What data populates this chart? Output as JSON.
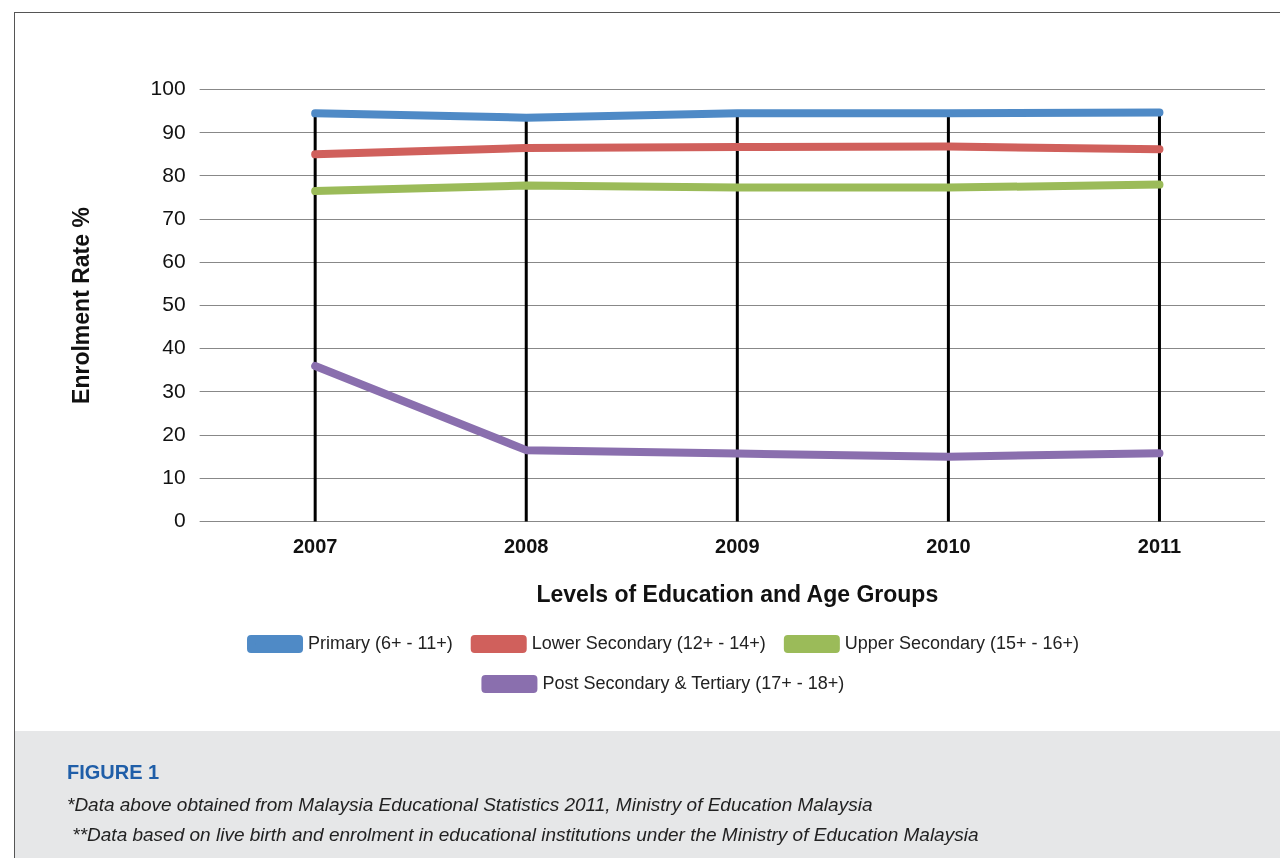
{
  "chart_data": {
    "type": "line",
    "xlabel": "Levels of Education and Age Groups",
    "ylabel": "Enrolment Rate %",
    "categories": [
      "2007",
      "2008",
      "2009",
      "2010",
      "2011"
    ],
    "series": [
      {
        "name": "Primary (6+ - 11+)",
        "color": "#4f8ac6",
        "values": [
          94.5,
          93.5,
          94.5,
          94.5,
          94.7
        ]
      },
      {
        "name": "Lower Secondary (12+ - 14+)",
        "color": "#d0605c",
        "values": [
          85,
          86.5,
          86.7,
          86.8,
          86.2
        ]
      },
      {
        "name": "Upper Secondary (15+ - 16+)",
        "color": "#9bbb59",
        "values": [
          76.5,
          77.8,
          77.3,
          77.3,
          78
        ]
      },
      {
        "name": "Post Secondary & Tertiary (17+ - 18+)",
        "color": "#8a6fae",
        "values": [
          36,
          16.5,
          15.7,
          15,
          15.8
        ]
      }
    ],
    "ylim": [
      0,
      100
    ],
    "yticks": [
      0,
      10,
      20,
      30,
      40,
      50,
      60,
      70,
      80,
      90,
      100
    ],
    "grid": "y",
    "legend": "bottom",
    "marker": "none",
    "line_style": "solid",
    "ref_lines": [
      {
        "axis": "x",
        "value": "2007",
        "color": "#000000"
      },
      {
        "axis": "x",
        "value": "2008",
        "color": "#000000"
      },
      {
        "axis": "x",
        "value": "2009",
        "color": "#000000"
      },
      {
        "axis": "x",
        "value": "2010",
        "color": "#000000"
      },
      {
        "axis": "x",
        "value": "2011",
        "color": "#000000"
      }
    ],
    "annotations": [
      "FIGURE 1",
      "*Data above obtained from Malaysia Educational Statistics 2011, Ministry of Education Malaysia",
      " **Data based on live birth and enrolment in educational institutions under the Ministry of Education Malaysia"
    ]
  }
}
